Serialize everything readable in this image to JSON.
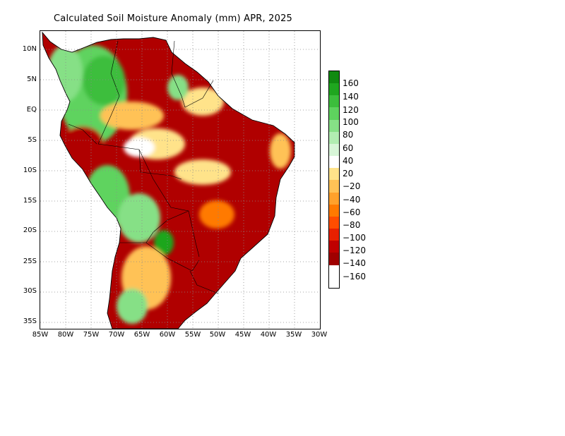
{
  "title": "Calculated Soil Moisture Anomaly (mm) APR, 2025",
  "map": {
    "extent": {
      "lon_min": -85,
      "lon_max": -30,
      "lat_min": -36,
      "lat_max": 13
    },
    "lat_ticks": [
      {
        "value": 10,
        "label": "10N"
      },
      {
        "value": 5,
        "label": "5N"
      },
      {
        "value": 0,
        "label": "EQ"
      },
      {
        "value": -5,
        "label": "5S"
      },
      {
        "value": -10,
        "label": "10S"
      },
      {
        "value": -15,
        "label": "15S"
      },
      {
        "value": -20,
        "label": "20S"
      },
      {
        "value": -25,
        "label": "25S"
      },
      {
        "value": -30,
        "label": "30S"
      },
      {
        "value": -35,
        "label": "35S"
      }
    ],
    "lon_ticks": [
      {
        "value": -85,
        "label": "85W"
      },
      {
        "value": -80,
        "label": "80W"
      },
      {
        "value": -75,
        "label": "75W"
      },
      {
        "value": -70,
        "label": "70W"
      },
      {
        "value": -65,
        "label": "65W"
      },
      {
        "value": -60,
        "label": "60W"
      },
      {
        "value": -55,
        "label": "55W"
      },
      {
        "value": -50,
        "label": "50W"
      },
      {
        "value": -45,
        "label": "45W"
      },
      {
        "value": -40,
        "label": "40W"
      },
      {
        "value": -35,
        "label": "35W"
      },
      {
        "value": -30,
        "label": "30W"
      }
    ],
    "grid": "dotted"
  },
  "colorbar": {
    "colors": [
      "#118a11",
      "#1fa61f",
      "#3cbe3c",
      "#5ed35e",
      "#86e086",
      "#b1edb1",
      "#d8f6d8",
      "#ffffff",
      "#ffe38a",
      "#ffc256",
      "#ffa12b",
      "#ff7a00",
      "#ff4d00",
      "#e82000",
      "#c00000",
      "#a00000"
    ],
    "labels": [
      "160",
      "140",
      "120",
      "100",
      "80",
      "60",
      "40",
      "20",
      "−20",
      "−40",
      "−60",
      "−80",
      "−100",
      "−120",
      "−140",
      "−160"
    ]
  }
}
